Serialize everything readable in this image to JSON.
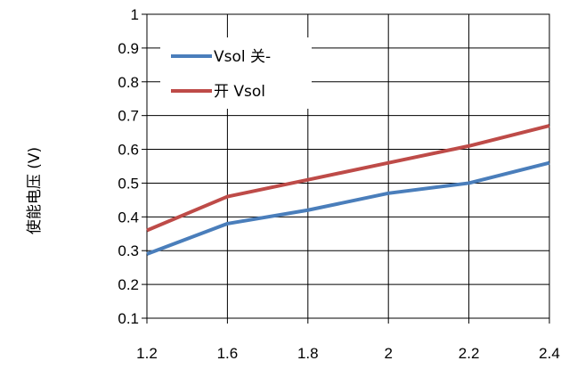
{
  "chart_data": {
    "type": "line",
    "title": "",
    "xlabel": "",
    "ylabel": "使能电压 (V)",
    "x": [
      1.2,
      1.6,
      1.8,
      2,
      2.2,
      2.4
    ],
    "x_tick_labels": [
      "1.2",
      "1.6",
      "1.8",
      "2",
      "2.2",
      "2.4"
    ],
    "y_tick_labels": [
      "0.1",
      "0.2",
      "0.3",
      "0.4",
      "0.5",
      "0.6",
      "0.7",
      "0.8",
      "0.9",
      "1"
    ],
    "ylim": [
      0.1,
      1.0
    ],
    "grid": true,
    "legend_position": "top-left",
    "series": [
      {
        "name": "Vsol 关-",
        "color": "#4a7ebb",
        "values": [
          0.29,
          0.38,
          0.42,
          0.47,
          0.5,
          0.56
        ]
      },
      {
        "name": "开 Vsol",
        "color": "#be4b48",
        "values": [
          0.36,
          0.46,
          0.51,
          0.56,
          0.61,
          0.67
        ]
      }
    ]
  }
}
